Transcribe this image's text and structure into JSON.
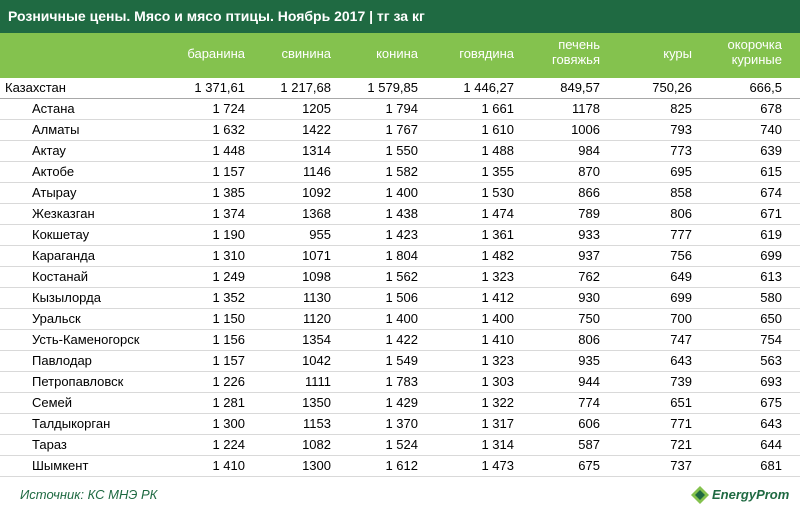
{
  "chart_data": {
    "type": "table",
    "title": "Розничные цены. Мясо и мясо птицы. Ноябрь 2017 | тг за кг",
    "columns": [
      "баранина",
      "свинина",
      "конина",
      "говядина",
      "печень\nговяжья",
      "куры",
      "окорочка\nкуриные"
    ],
    "rows": [
      {
        "name": "Казахстан",
        "values": [
          "1 371,61",
          "1 217,68",
          "1 579,85",
          "1 446,27",
          "849,57",
          "750,26",
          "666,5"
        ]
      },
      {
        "name": "Астана",
        "values": [
          "1 724",
          "1205",
          "1 794",
          "1 661",
          "1178",
          "825",
          "678"
        ]
      },
      {
        "name": "Алматы",
        "values": [
          "1 632",
          "1422",
          "1 767",
          "1 610",
          "1006",
          "793",
          "740"
        ]
      },
      {
        "name": "Актау",
        "values": [
          "1 448",
          "1314",
          "1 550",
          "1 488",
          "984",
          "773",
          "639"
        ]
      },
      {
        "name": "Актобе",
        "values": [
          "1 157",
          "1146",
          "1 582",
          "1 355",
          "870",
          "695",
          "615"
        ]
      },
      {
        "name": "Атырау",
        "values": [
          "1 385",
          "1092",
          "1 400",
          "1 530",
          "866",
          "858",
          "674"
        ]
      },
      {
        "name": "Жезказган",
        "values": [
          "1 374",
          "1368",
          "1 438",
          "1 474",
          "789",
          "806",
          "671"
        ]
      },
      {
        "name": "Кокшетау",
        "values": [
          "1 190",
          "955",
          "1 423",
          "1 361",
          "933",
          "777",
          "619"
        ]
      },
      {
        "name": "Караганда",
        "values": [
          "1 310",
          "1071",
          "1 804",
          "1 482",
          "937",
          "756",
          "699"
        ]
      },
      {
        "name": "Костанай",
        "values": [
          "1 249",
          "1098",
          "1 562",
          "1 323",
          "762",
          "649",
          "613"
        ]
      },
      {
        "name": "Кызылорда",
        "values": [
          "1 352",
          "1130",
          "1 506",
          "1 412",
          "930",
          "699",
          "580"
        ]
      },
      {
        "name": "Уральск",
        "values": [
          "1 150",
          "1120",
          "1 400",
          "1 400",
          "750",
          "700",
          "650"
        ]
      },
      {
        "name": "Усть-Каменогорск",
        "values": [
          "1 156",
          "1354",
          "1 422",
          "1 410",
          "806",
          "747",
          "754"
        ]
      },
      {
        "name": "Павлодар",
        "values": [
          "1 157",
          "1042",
          "1 549",
          "1 323",
          "935",
          "643",
          "563"
        ]
      },
      {
        "name": "Петропавловск",
        "values": [
          "1 226",
          "1111",
          "1 783",
          "1 303",
          "944",
          "739",
          "693"
        ]
      },
      {
        "name": "Семей",
        "values": [
          "1 281",
          "1350",
          "1 429",
          "1 322",
          "774",
          "651",
          "675"
        ]
      },
      {
        "name": "Талдыкорган",
        "values": [
          "1 300",
          "1153",
          "1 370",
          "1 317",
          "606",
          "771",
          "643"
        ]
      },
      {
        "name": "Тараз",
        "values": [
          "1 224",
          "1082",
          "1 524",
          "1 314",
          "587",
          "721",
          "644"
        ]
      },
      {
        "name": "Шымкент",
        "values": [
          "1 410",
          "1300",
          "1 612",
          "1 473",
          "675",
          "737",
          "681"
        ]
      }
    ]
  },
  "footer": {
    "source": "Источник: КС МНЭ РК",
    "logo_text": "EnergyProm"
  },
  "colors": {
    "title_bg": "#1f6a42",
    "header_bg": "#84c24e",
    "accent": "#1f6a42"
  }
}
